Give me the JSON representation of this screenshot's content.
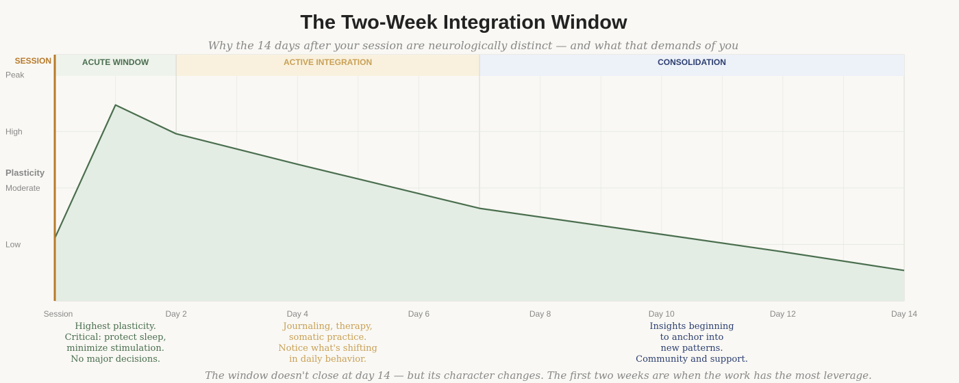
{
  "chart_data": {
    "type": "area",
    "title": "The Two-Week Integration Window",
    "subtitle": "Why the 14 days after your session are neurologically distinct — and what that demands of you",
    "ylabel": "Plasticity",
    "xlabel": "",
    "xlim": [
      0,
      14
    ],
    "ylim": [
      0,
      4.36
    ],
    "grid": true,
    "y_ticks": [
      {
        "value": 1,
        "label": "Low"
      },
      {
        "value": 2,
        "label": "Moderate"
      },
      {
        "value": 3,
        "label": "High"
      },
      {
        "value": 4,
        "label": "Peak"
      }
    ],
    "x_ticks": [
      {
        "value": 0,
        "label": "Session"
      },
      {
        "value": 2,
        "label": "Day 2"
      },
      {
        "value": 4,
        "label": "Day 4"
      },
      {
        "value": 6,
        "label": "Day 6"
      },
      {
        "value": 8,
        "label": "Day 8"
      },
      {
        "value": 10,
        "label": "Day 10"
      },
      {
        "value": 12,
        "label": "Day 12"
      },
      {
        "value": 14,
        "label": "Day 14"
      }
    ],
    "series": [
      {
        "x": [
          0,
          1,
          2,
          4,
          6,
          7,
          10,
          12,
          14
        ],
        "y": [
          1.11,
          3.47,
          2.96,
          2.42,
          1.9,
          1.64,
          1.18,
          0.87,
          0.54
        ],
        "color": "#4a6e4e",
        "fill": "#e3ede4"
      }
    ],
    "session_marker": {
      "x": 0,
      "label": "SESSION",
      "color": "#b87a2a"
    },
    "phases": [
      {
        "label": "ACUTE WINDOW",
        "start": 0,
        "end": 2,
        "bg": "#eef3ec",
        "color": "#4a6e4e",
        "note": [
          "Highest plasticity.",
          "Critical: protect sleep,",
          "minimize stimulation.",
          "No major decisions."
        ],
        "note_x": 1
      },
      {
        "label": "ACTIVE INTEGRATION",
        "start": 2,
        "end": 7,
        "bg": "#f9f1de",
        "color": "#c9a055",
        "note": [
          "Journaling, therapy,",
          "somatic practice.",
          "Notice what's shifting",
          "in daily behavior."
        ],
        "note_x": 4.5
      },
      {
        "label": "CONSOLIDATION",
        "start": 7,
        "end": 14,
        "bg": "#edf1f8",
        "color": "#2c3e70",
        "note": [
          "Insights beginning",
          "to anchor into",
          "new patterns.",
          "Community and support."
        ],
        "note_x": 10.5
      }
    ],
    "footer": "The window doesn't close at day 14 — but its character changes. The first two weeks are when the work has the most leverage."
  }
}
